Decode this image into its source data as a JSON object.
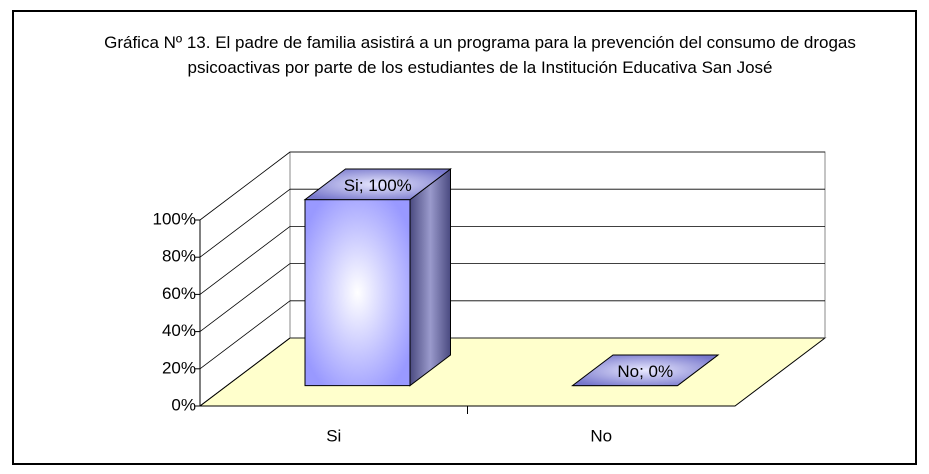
{
  "chart_data": {
    "type": "bar3d",
    "title": "Gráfica Nº 13.  El padre de familia asistirá a un programa para la prevención del consumo de drogas psicoactivas por parte de los estudiantes de la Institución Educativa San José",
    "categories": [
      "Si",
      "No"
    ],
    "values": [
      100,
      0
    ],
    "value_labels": [
      "Si; 100%",
      "No; 0%"
    ],
    "color": "#9999ff",
    "floor_color": "#ffffcc",
    "ylim": [
      0,
      100
    ],
    "yticks": [
      {
        "value": 0,
        "label": "0%"
      },
      {
        "value": 20,
        "label": "20%"
      },
      {
        "value": 40,
        "label": "40%"
      },
      {
        "value": 60,
        "label": "60%"
      },
      {
        "value": 80,
        "label": "80%"
      },
      {
        "value": 100,
        "label": "100%"
      }
    ],
    "grid": true
  }
}
